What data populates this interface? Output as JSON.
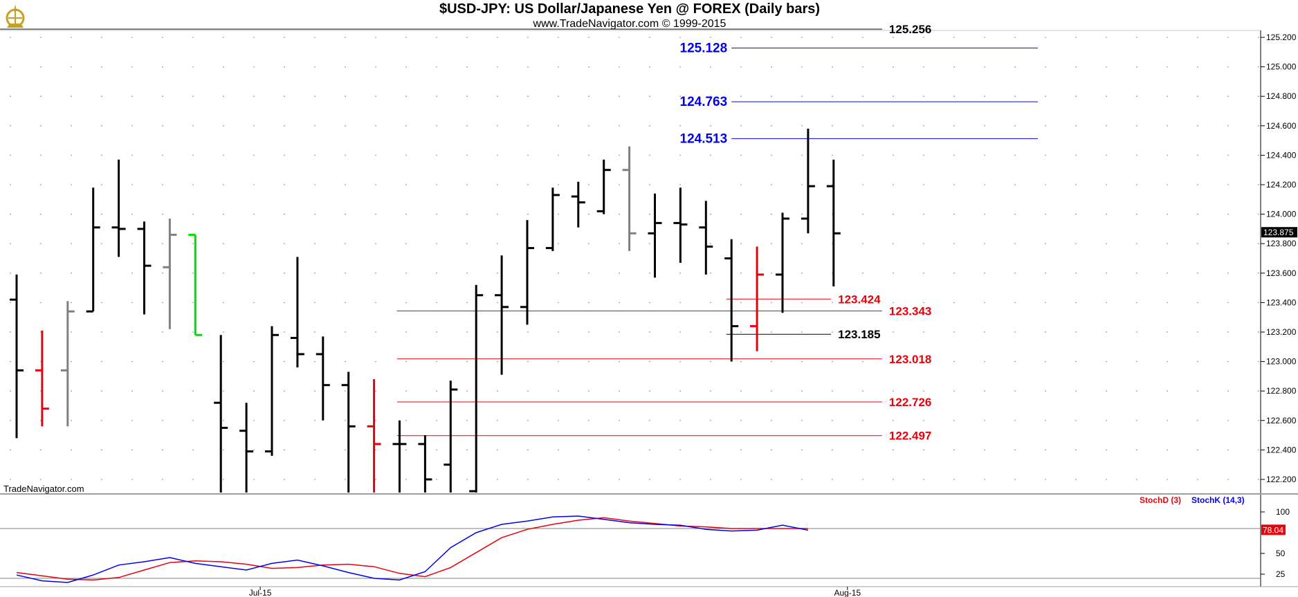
{
  "header": {
    "title": "$USD-JPY:  US Dollar/Japanese Yen @ FOREX  (Daily bars)",
    "subtitle": "www.TradeNavigator.com © 1999-2015",
    "watermark": "TradeNavigator.com"
  },
  "colors": {
    "bar_default": "#000000",
    "bar_red": "#e8000b",
    "bar_gray": "#808080",
    "bar_green": "#00dd00",
    "level_red": "#e8000b",
    "level_blue": "#0000ee",
    "level_black": "#000000",
    "stochD": "#e8000b",
    "stochK": "#0000ee"
  },
  "chart_data": [
    {
      "type": "ohlc",
      "price_axis": {
        "min": 122.2,
        "max": 125.3,
        "ticks": [
          "125.200",
          "125.000",
          "124.800",
          "124.600",
          "124.400",
          "124.200",
          "124.000",
          "123.800",
          "123.600",
          "123.400",
          "123.200",
          "123.000",
          "122.800",
          "122.600",
          "122.400",
          "122.200"
        ],
        "last_price": "123.875"
      },
      "x_axis": {
        "labels": [
          {
            "text": "Jul-15",
            "index": 9
          },
          {
            "text": "Aug-15",
            "index": 32
          }
        ]
      },
      "bars": [
        {
          "i": 0,
          "o": 123.42,
          "h": 123.59,
          "l": 122.48,
          "c": 122.94,
          "color": "black"
        },
        {
          "i": 1,
          "o": 122.94,
          "h": 123.21,
          "l": 122.56,
          "c": 122.68,
          "color": "red"
        },
        {
          "i": 2,
          "o": 122.94,
          "h": 123.41,
          "l": 122.56,
          "c": 123.34,
          "color": "gray"
        },
        {
          "i": 3,
          "o": 123.34,
          "h": 124.18,
          "l": 123.34,
          "c": 123.91,
          "color": "black"
        },
        {
          "i": 4,
          "o": 123.91,
          "h": 124.37,
          "l": 123.71,
          "c": 123.9,
          "color": "black"
        },
        {
          "i": 5,
          "o": 123.9,
          "h": 123.95,
          "l": 123.32,
          "c": 123.65,
          "color": "black"
        },
        {
          "i": 6,
          "o": 123.64,
          "h": 123.97,
          "l": 123.22,
          "c": 123.86,
          "color": "gray"
        },
        {
          "i": 7,
          "o": 123.86,
          "h": 123.86,
          "l": 123.18,
          "c": 123.18,
          "color": "green"
        },
        {
          "i": 8,
          "o": 122.72,
          "h": 123.18,
          "l": 121.9,
          "c": 122.55,
          "color": "black"
        },
        {
          "i": 9,
          "o": 122.53,
          "h": 122.72,
          "l": 122.1,
          "c": 122.39,
          "color": "black"
        },
        {
          "i": 10,
          "o": 122.39,
          "h": 123.24,
          "l": 122.36,
          "c": 123.18,
          "color": "black"
        },
        {
          "i": 11,
          "o": 123.16,
          "h": 123.71,
          "l": 122.96,
          "c": 123.05,
          "color": "black"
        },
        {
          "i": 12,
          "o": 123.05,
          "h": 123.17,
          "l": 122.6,
          "c": 122.84,
          "color": "black"
        },
        {
          "i": 13,
          "o": 122.84,
          "h": 122.93,
          "l": 122.05,
          "c": 122.56,
          "color": "black"
        },
        {
          "i": 14,
          "o": 122.56,
          "h": 122.88,
          "l": 122.1,
          "c": 122.44,
          "color": "red"
        },
        {
          "i": 15,
          "o": 122.44,
          "h": 122.6,
          "l": 121.9,
          "c": 122.44,
          "color": "black"
        },
        {
          "i": 16,
          "o": 122.44,
          "h": 122.5,
          "l": 122.0,
          "c": 122.2,
          "color": "black"
        },
        {
          "i": 17,
          "o": 122.3,
          "h": 122.87,
          "l": 122.0,
          "c": 122.81,
          "color": "black"
        },
        {
          "i": 18,
          "o": 122.12,
          "h": 123.52,
          "l": 122.1,
          "c": 123.45,
          "color": "black"
        },
        {
          "i": 19,
          "o": 123.45,
          "h": 123.72,
          "l": 122.91,
          "c": 123.37,
          "color": "black"
        },
        {
          "i": 20,
          "o": 123.37,
          "h": 123.96,
          "l": 123.25,
          "c": 123.77,
          "color": "black"
        },
        {
          "i": 21,
          "o": 123.77,
          "h": 124.18,
          "l": 123.75,
          "c": 124.13,
          "color": "black"
        },
        {
          "i": 22,
          "o": 124.12,
          "h": 124.22,
          "l": 123.91,
          "c": 124.08,
          "color": "black"
        },
        {
          "i": 23,
          "o": 124.02,
          "h": 124.37,
          "l": 124.0,
          "c": 124.3,
          "color": "black"
        },
        {
          "i": 24,
          "o": 124.3,
          "h": 124.46,
          "l": 123.75,
          "c": 123.87,
          "color": "gray"
        },
        {
          "i": 25,
          "o": 123.87,
          "h": 124.14,
          "l": 123.57,
          "c": 123.94,
          "color": "black"
        },
        {
          "i": 26,
          "o": 123.94,
          "h": 124.18,
          "l": 123.67,
          "c": 123.93,
          "color": "black"
        },
        {
          "i": 27,
          "o": 123.91,
          "h": 124.09,
          "l": 123.59,
          "c": 123.78,
          "color": "black"
        },
        {
          "i": 28,
          "o": 123.7,
          "h": 123.83,
          "l": 123.0,
          "c": 123.24,
          "color": "black"
        },
        {
          "i": 29,
          "o": 123.24,
          "h": 123.78,
          "l": 123.07,
          "c": 123.59,
          "color": "red"
        },
        {
          "i": 30,
          "o": 123.59,
          "h": 124.01,
          "l": 123.33,
          "c": 123.97,
          "color": "black"
        },
        {
          "i": 31,
          "o": 123.97,
          "h": 124.58,
          "l": 123.87,
          "c": 124.19,
          "color": "black"
        },
        {
          "i": 32,
          "o": 124.19,
          "h": 124.37,
          "l": 123.51,
          "c": 123.87,
          "color": "black"
        }
      ],
      "levels": [
        {
          "value": 125.256,
          "label": "125.256",
          "color": "black",
          "from_index": -1,
          "to_index": 33.9,
          "label_side": "right"
        },
        {
          "value": 125.128,
          "label": "125.128",
          "color": "blue",
          "from_index": 28,
          "to_index": 40,
          "label_side": "left"
        },
        {
          "value": 124.763,
          "label": "124.763",
          "color": "blue",
          "from_index": 28,
          "to_index": 40,
          "label_side": "left"
        },
        {
          "value": 124.513,
          "label": "124.513",
          "color": "blue",
          "from_index": 28,
          "to_index": 40,
          "label_side": "left"
        },
        {
          "value": 123.424,
          "label": "123.424",
          "color": "red",
          "from_index": 27.8,
          "to_index": 31.9,
          "label_side": "right"
        },
        {
          "value": 123.343,
          "label": "123.343",
          "color": "red",
          "from_index": 14.9,
          "to_index": 33.9,
          "label_side": "right"
        },
        {
          "value": 123.185,
          "label": "123.185",
          "color": "black",
          "from_index": 27.8,
          "to_index": 31.9,
          "label_side": "right"
        },
        {
          "value": 123.018,
          "label": "123.018",
          "color": "red",
          "from_index": 14.9,
          "to_index": 33.9,
          "label_side": "right"
        },
        {
          "value": 122.726,
          "label": "122.726",
          "color": "red",
          "from_index": 14.9,
          "to_index": 33.9,
          "label_side": "right"
        },
        {
          "value": 122.497,
          "label": "122.497",
          "color": "red",
          "from_index": 14.9,
          "to_index": 33.9,
          "label_side": "right"
        }
      ]
    },
    {
      "type": "line",
      "y_axis": {
        "min": 15,
        "max": 108,
        "ticks": [
          "100",
          "50",
          "25"
        ],
        "reference_lines": [
          80,
          20
        ],
        "last_value": "78.04"
      },
      "legend": [
        "StochD (3)",
        "StochK (14,3)"
      ],
      "series": [
        {
          "name": "StochD (3)",
          "color": "red",
          "values": [
            27,
            23,
            19,
            18,
            21,
            30,
            39,
            41,
            40,
            37,
            32,
            33,
            36,
            37,
            34,
            26,
            22,
            33,
            51,
            69,
            79,
            85,
            90,
            93,
            89,
            86,
            83,
            82,
            80,
            80,
            80,
            80
          ]
        },
        {
          "name": "StochK (14,3)",
          "color": "blue",
          "values": [
            24,
            17,
            15,
            24,
            36,
            40,
            45,
            38,
            34,
            30,
            38,
            42,
            35,
            27,
            20,
            18,
            28,
            57,
            75,
            85,
            89,
            94,
            95,
            91,
            87,
            85,
            84,
            79,
            77,
            78,
            84,
            78
          ]
        }
      ]
    }
  ]
}
